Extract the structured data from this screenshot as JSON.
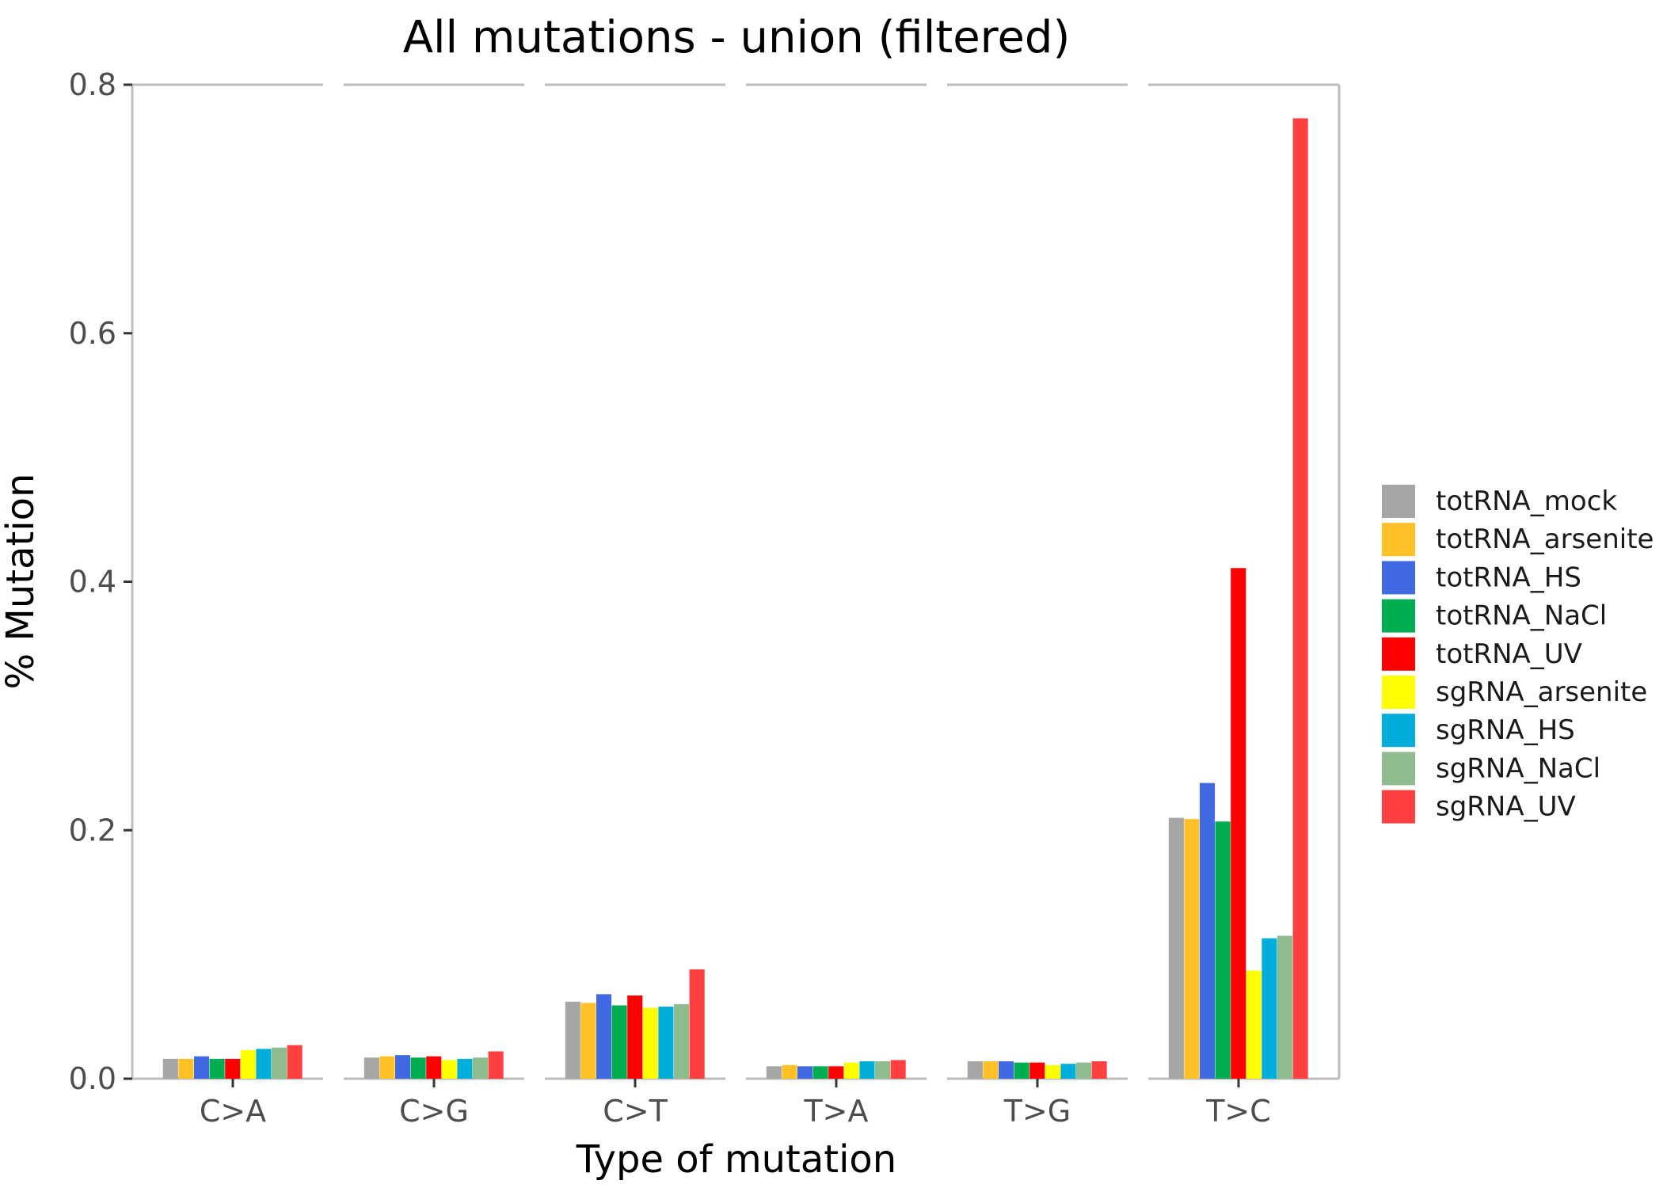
{
  "chart_data": {
    "type": "bar",
    "title": "All mutations - union (filtered)",
    "xlabel": "Type of mutation",
    "ylabel": "% Mutation",
    "categories": [
      "C>A",
      "C>G",
      "C>T",
      "T>A",
      "T>G",
      "T>C"
    ],
    "ylim": [
      0,
      0.8
    ],
    "yticks": [
      0.0,
      0.2,
      0.4,
      0.6,
      0.8
    ],
    "ytick_labels": [
      "0.0",
      "0.2",
      "0.4",
      "0.6",
      "0.8"
    ],
    "grid": false,
    "legend_position": "right",
    "series": [
      {
        "name": "totRNA_mock",
        "color": "#A6A6A6",
        "values": [
          0.016,
          0.017,
          0.062,
          0.01,
          0.014,
          0.21
        ]
      },
      {
        "name": "totRNA_arsenite",
        "color": "#FFC125",
        "values": [
          0.016,
          0.018,
          0.061,
          0.011,
          0.014,
          0.209
        ]
      },
      {
        "name": "totRNA_HS",
        "color": "#4169E1",
        "values": [
          0.018,
          0.019,
          0.068,
          0.01,
          0.014,
          0.238
        ]
      },
      {
        "name": "totRNA_NaCl",
        "color": "#00AD50",
        "values": [
          0.016,
          0.017,
          0.059,
          0.01,
          0.013,
          0.207
        ]
      },
      {
        "name": "totRNA_UV",
        "color": "#FF0000",
        "values": [
          0.016,
          0.018,
          0.067,
          0.01,
          0.013,
          0.411
        ]
      },
      {
        "name": "sgRNA_arsenite",
        "color": "#FFFF00",
        "values": [
          0.023,
          0.015,
          0.057,
          0.013,
          0.011,
          0.087
        ]
      },
      {
        "name": "sgRNA_HS",
        "color": "#00AEDB",
        "values": [
          0.024,
          0.016,
          0.058,
          0.014,
          0.012,
          0.113
        ]
      },
      {
        "name": "sgRNA_NaCl",
        "color": "#8FBC8F",
        "values": [
          0.025,
          0.017,
          0.06,
          0.014,
          0.013,
          0.115
        ]
      },
      {
        "name": "sgRNA_UV",
        "color": "#FF4040",
        "values": [
          0.027,
          0.022,
          0.088,
          0.015,
          0.014,
          0.773
        ]
      }
    ]
  },
  "colors": {
    "axis": "#BEBEBE",
    "panel_line": "#BEBEBE"
  }
}
